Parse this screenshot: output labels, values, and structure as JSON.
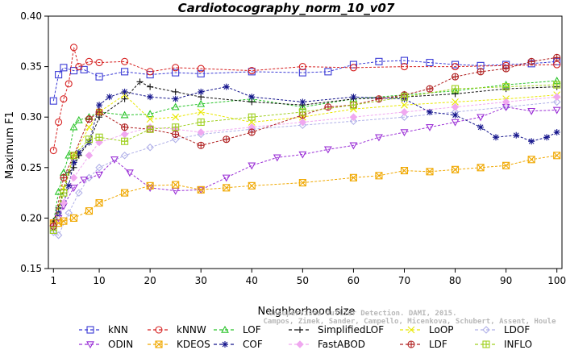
{
  "chart_data": {
    "type": "line",
    "title": "Cardiotocography_norm_10_v07",
    "xlabel": "Neighborhood size",
    "ylabel": "Maximum F1",
    "xlim": [
      0,
      101
    ],
    "ylim": [
      0.15,
      0.4
    ],
    "x_ticks": [
      1,
      10,
      20,
      30,
      40,
      50,
      60,
      70,
      80,
      90,
      100
    ],
    "y_ticks": [
      "0.15",
      "0.20",
      "0.25",
      "0.30",
      "0.35",
      "0.40"
    ],
    "grid": false,
    "legend_position": "bottom",
    "watermark": [
      "Campos, Zimek, Sander, Campello, Micenkova, Schubert, Assent, Houle",
      "Unsupervised Outlier Detection. DAMI, 2015."
    ],
    "series": [
      {
        "name": "kNN",
        "color": "#3b3bd6",
        "marker": "square",
        "points": [
          [
            1,
            0.316
          ],
          [
            2,
            0.342
          ],
          [
            3,
            0.349
          ],
          [
            5,
            0.346
          ],
          [
            7,
            0.347
          ],
          [
            10,
            0.34
          ],
          [
            15,
            0.345
          ],
          [
            20,
            0.342
          ],
          [
            25,
            0.344
          ],
          [
            30,
            0.343
          ],
          [
            40,
            0.345
          ],
          [
            50,
            0.344
          ],
          [
            55,
            0.345
          ],
          [
            60,
            0.352
          ],
          [
            65,
            0.355
          ],
          [
            70,
            0.356
          ],
          [
            75,
            0.354
          ],
          [
            80,
            0.352
          ],
          [
            85,
            0.351
          ],
          [
            90,
            0.352
          ],
          [
            95,
            0.353
          ],
          [
            100,
            0.355
          ]
        ]
      },
      {
        "name": "kNNW",
        "color": "#d62020",
        "marker": "circle",
        "points": [
          [
            1,
            0.267
          ],
          [
            2,
            0.295
          ],
          [
            3,
            0.318
          ],
          [
            4,
            0.333
          ],
          [
            5,
            0.369
          ],
          [
            6,
            0.35
          ],
          [
            8,
            0.355
          ],
          [
            10,
            0.354
          ],
          [
            15,
            0.355
          ],
          [
            20,
            0.345
          ],
          [
            25,
            0.349
          ],
          [
            30,
            0.348
          ],
          [
            40,
            0.346
          ],
          [
            50,
            0.35
          ],
          [
            60,
            0.349
          ],
          [
            70,
            0.35
          ],
          [
            80,
            0.35
          ],
          [
            90,
            0.351
          ],
          [
            100,
            0.352
          ]
        ]
      },
      {
        "name": "LOF",
        "color": "#2bc42b",
        "marker": "triangle-up",
        "points": [
          [
            1,
            0.195
          ],
          [
            2,
            0.226
          ],
          [
            3,
            0.245
          ],
          [
            4,
            0.262
          ],
          [
            5,
            0.29
          ],
          [
            6,
            0.297
          ],
          [
            8,
            0.3
          ],
          [
            10,
            0.305
          ],
          [
            15,
            0.302
          ],
          [
            20,
            0.303
          ],
          [
            25,
            0.31
          ],
          [
            30,
            0.313
          ],
          [
            40,
            0.318
          ],
          [
            50,
            0.31
          ],
          [
            60,
            0.318
          ],
          [
            70,
            0.322
          ],
          [
            80,
            0.326
          ],
          [
            90,
            0.332
          ],
          [
            100,
            0.336
          ]
        ]
      },
      {
        "name": "SimplifiedLOF",
        "color": "#111111",
        "marker": "plus",
        "points": [
          [
            1,
            0.197
          ],
          [
            2,
            0.21
          ],
          [
            3,
            0.228
          ],
          [
            4,
            0.245
          ],
          [
            5,
            0.25
          ],
          [
            6,
            0.262
          ],
          [
            8,
            0.275
          ],
          [
            10,
            0.3
          ],
          [
            15,
            0.318
          ],
          [
            18,
            0.335
          ],
          [
            20,
            0.33
          ],
          [
            25,
            0.325
          ],
          [
            30,
            0.32
          ],
          [
            40,
            0.315
          ],
          [
            50,
            0.312
          ],
          [
            60,
            0.318
          ],
          [
            70,
            0.32
          ],
          [
            80,
            0.323
          ],
          [
            90,
            0.328
          ],
          [
            100,
            0.33
          ]
        ]
      },
      {
        "name": "LoOP",
        "color": "#e8e800",
        "marker": "cross",
        "points": [
          [
            1,
            0.193
          ],
          [
            3,
            0.23
          ],
          [
            5,
            0.262
          ],
          [
            8,
            0.29
          ],
          [
            10,
            0.305
          ],
          [
            15,
            0.322
          ],
          [
            20,
            0.298
          ],
          [
            25,
            0.3
          ],
          [
            30,
            0.305
          ],
          [
            40,
            0.295
          ],
          [
            50,
            0.3
          ],
          [
            60,
            0.308
          ],
          [
            70,
            0.312
          ],
          [
            80,
            0.315
          ],
          [
            90,
            0.318
          ],
          [
            100,
            0.322
          ]
        ]
      },
      {
        "name": "LDOF",
        "color": "#b0b0e8",
        "marker": "diamond",
        "points": [
          [
            1,
            0.186
          ],
          [
            2,
            0.183
          ],
          [
            4,
            0.205
          ],
          [
            6,
            0.225
          ],
          [
            8,
            0.24
          ],
          [
            10,
            0.25
          ],
          [
            15,
            0.262
          ],
          [
            20,
            0.27
          ],
          [
            25,
            0.278
          ],
          [
            30,
            0.283
          ],
          [
            40,
            0.288
          ],
          [
            50,
            0.292
          ],
          [
            60,
            0.296
          ],
          [
            70,
            0.3
          ],
          [
            80,
            0.305
          ],
          [
            90,
            0.31
          ],
          [
            100,
            0.315
          ]
        ]
      },
      {
        "name": "ODIN",
        "color": "#9b30d6",
        "marker": "triangle-down",
        "points": [
          [
            1,
            0.19
          ],
          [
            2,
            0.2
          ],
          [
            3,
            0.212
          ],
          [
            5,
            0.23
          ],
          [
            7,
            0.238
          ],
          [
            10,
            0.243
          ],
          [
            13,
            0.258
          ],
          [
            16,
            0.245
          ],
          [
            20,
            0.23
          ],
          [
            25,
            0.227
          ],
          [
            30,
            0.228
          ],
          [
            35,
            0.24
          ],
          [
            40,
            0.252
          ],
          [
            45,
            0.26
          ],
          [
            50,
            0.263
          ],
          [
            55,
            0.268
          ],
          [
            60,
            0.272
          ],
          [
            65,
            0.28
          ],
          [
            70,
            0.285
          ],
          [
            75,
            0.29
          ],
          [
            80,
            0.295
          ],
          [
            85,
            0.3
          ],
          [
            90,
            0.31
          ],
          [
            95,
            0.306
          ],
          [
            100,
            0.307
          ]
        ]
      },
      {
        "name": "KDEOS",
        "color": "#f0a800",
        "marker": "square-x",
        "points": [
          [
            1,
            0.195
          ],
          [
            2,
            0.195
          ],
          [
            3,
            0.197
          ],
          [
            5,
            0.2
          ],
          [
            8,
            0.207
          ],
          [
            10,
            0.215
          ],
          [
            15,
            0.225
          ],
          [
            20,
            0.232
          ],
          [
            25,
            0.233
          ],
          [
            30,
            0.228
          ],
          [
            35,
            0.23
          ],
          [
            40,
            0.232
          ],
          [
            50,
            0.235
          ],
          [
            60,
            0.24
          ],
          [
            65,
            0.242
          ],
          [
            70,
            0.247
          ],
          [
            75,
            0.246
          ],
          [
            80,
            0.248
          ],
          [
            85,
            0.25
          ],
          [
            90,
            0.252
          ],
          [
            95,
            0.258
          ],
          [
            100,
            0.262
          ]
        ]
      },
      {
        "name": "COF",
        "color": "#14148c",
        "marker": "star",
        "points": [
          [
            1,
            0.19
          ],
          [
            2,
            0.205
          ],
          [
            3,
            0.215
          ],
          [
            4,
            0.232
          ],
          [
            5,
            0.255
          ],
          [
            6,
            0.265
          ],
          [
            8,
            0.275
          ],
          [
            10,
            0.312
          ],
          [
            12,
            0.32
          ],
          [
            15,
            0.325
          ],
          [
            20,
            0.32
          ],
          [
            25,
            0.318
          ],
          [
            30,
            0.325
          ],
          [
            35,
            0.33
          ],
          [
            40,
            0.32
          ],
          [
            50,
            0.315
          ],
          [
            60,
            0.32
          ],
          [
            70,
            0.318
          ],
          [
            75,
            0.305
          ],
          [
            80,
            0.302
          ],
          [
            85,
            0.29
          ],
          [
            88,
            0.28
          ],
          [
            92,
            0.282
          ],
          [
            95,
            0.276
          ],
          [
            98,
            0.28
          ],
          [
            100,
            0.285
          ]
        ]
      },
      {
        "name": "FastABOD",
        "color": "#f0a8f0",
        "marker": "diamond-filled",
        "points": [
          [
            1,
            0.192
          ],
          [
            3,
            0.215
          ],
          [
            5,
            0.24
          ],
          [
            8,
            0.262
          ],
          [
            10,
            0.275
          ],
          [
            15,
            0.283
          ],
          [
            20,
            0.29
          ],
          [
            25,
            0.288
          ],
          [
            30,
            0.285
          ],
          [
            40,
            0.29
          ],
          [
            50,
            0.295
          ],
          [
            60,
            0.3
          ],
          [
            70,
            0.305
          ],
          [
            80,
            0.31
          ],
          [
            90,
            0.315
          ],
          [
            100,
            0.32
          ]
        ]
      },
      {
        "name": "LDF",
        "color": "#b02020",
        "marker": "circle-plus",
        "points": [
          [
            1,
            0.192
          ],
          [
            3,
            0.24
          ],
          [
            5,
            0.262
          ],
          [
            8,
            0.298
          ],
          [
            10,
            0.305
          ],
          [
            15,
            0.29
          ],
          [
            20,
            0.288
          ],
          [
            25,
            0.283
          ],
          [
            30,
            0.272
          ],
          [
            35,
            0.278
          ],
          [
            40,
            0.285
          ],
          [
            50,
            0.302
          ],
          [
            55,
            0.31
          ],
          [
            60,
            0.312
          ],
          [
            65,
            0.318
          ],
          [
            70,
            0.322
          ],
          [
            75,
            0.328
          ],
          [
            80,
            0.34
          ],
          [
            85,
            0.345
          ],
          [
            90,
            0.348
          ],
          [
            95,
            0.355
          ],
          [
            100,
            0.359
          ]
        ]
      },
      {
        "name": "INFLO",
        "color": "#a0d020",
        "marker": "square-cross",
        "points": [
          [
            1,
            0.188
          ],
          [
            3,
            0.225
          ],
          [
            5,
            0.262
          ],
          [
            8,
            0.278
          ],
          [
            10,
            0.28
          ],
          [
            15,
            0.276
          ],
          [
            20,
            0.288
          ],
          [
            25,
            0.29
          ],
          [
            30,
            0.295
          ],
          [
            40,
            0.3
          ],
          [
            50,
            0.305
          ],
          [
            60,
            0.312
          ],
          [
            70,
            0.32
          ],
          [
            80,
            0.328
          ],
          [
            90,
            0.33
          ],
          [
            100,
            0.332
          ]
        ]
      }
    ]
  }
}
